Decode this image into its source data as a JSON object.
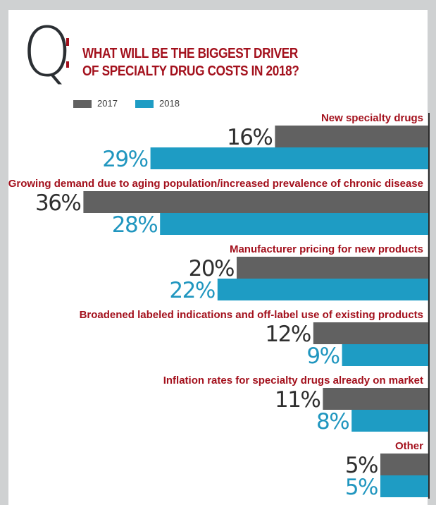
{
  "header": {
    "q_letter": "Q",
    "title_line1": "WHAT WILL BE THE BIGGEST DRIVER",
    "title_line2": "OF SPECIALTY DRUG COSTS IN 2018?"
  },
  "colors": {
    "frame": "#cfd1d2",
    "accent_red": "#a3101c",
    "series_2017": "#616161",
    "series_2018": "#1e9cc4",
    "value_2017_text": "#2f2f2f",
    "value_2018_text": "#2096bf"
  },
  "chart_data": {
    "type": "bar",
    "orientation": "horizontal",
    "title": "WHAT WILL BE THE BIGGEST DRIVER OF SPECIALTY DRUG COSTS IN 2018?",
    "legend_position": "top-left",
    "categories": [
      "New specialty drugs",
      "Growing demand due to aging population/increased prevalence of chronic disease",
      "Manufacturer pricing for new products",
      "Broadened labeled indications and off-label use of existing products",
      "Inflation rates for specialty drugs already on market",
      "Other"
    ],
    "series": [
      {
        "name": "2017",
        "values": [
          16,
          36,
          20,
          12,
          11,
          5
        ],
        "labels": [
          "16%",
          "36%",
          "20%",
          "12%",
          "11%",
          "5%"
        ]
      },
      {
        "name": "2018",
        "values": [
          29,
          28,
          22,
          9,
          8,
          5
        ],
        "labels": [
          "29%",
          "28%",
          "22%",
          "9%",
          "8%",
          "5%"
        ]
      }
    ],
    "unit": "%",
    "xlim": [
      0,
      40
    ],
    "grid": false
  }
}
